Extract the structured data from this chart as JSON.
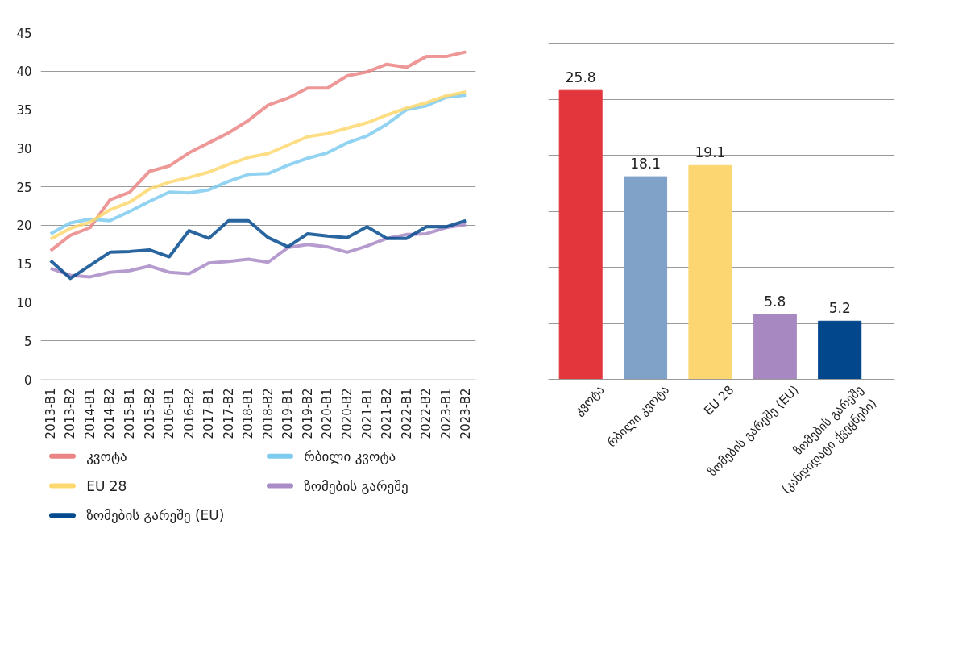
{
  "chart_data": [
    {
      "type": "line",
      "categories": [
        "2013-B1",
        "2013-B2",
        "2014-B1",
        "2014-B2",
        "2015-B1",
        "2015-B2",
        "2016-B1",
        "2016-B2",
        "2017-B1",
        "2017-B2",
        "2018-B1",
        "2018-B2",
        "2019-B1",
        "2019-B2",
        "2020-B1",
        "2020-B2",
        "2021-B1",
        "2021-B2",
        "2022-B1",
        "2022-B2",
        "2023-B1",
        "2023-B2"
      ],
      "ylim": [
        0,
        45
      ],
      "yticks": [
        0,
        5,
        10,
        15,
        20,
        25,
        30,
        35,
        40,
        45
      ],
      "grid": "y",
      "legend": "bottom",
      "line_style": "solid",
      "marker": "none",
      "series": [
        {
          "name": "კვოტა",
          "color": "#eb8585",
          "values": [
            16.7,
            18.7,
            19.7,
            23.3,
            24.3,
            27.0,
            27.7,
            29.4,
            30.7,
            32.0,
            33.6,
            35.6,
            36.5,
            37.8,
            37.8,
            39.4,
            39.9,
            40.9,
            40.5,
            41.9,
            41.9,
            42.5
          ]
        },
        {
          "name": "რბილი კვოტა",
          "color": "#7ecbee",
          "values": [
            18.9,
            20.3,
            20.8,
            20.6,
            21.8,
            23.1,
            24.3,
            24.2,
            24.6,
            25.7,
            26.6,
            26.7,
            27.8,
            28.7,
            29.4,
            30.7,
            31.6,
            33.1,
            35.0,
            35.5,
            36.6,
            36.9
          ]
        },
        {
          "name": "EU 28",
          "color": "#fdd86e",
          "values": [
            18.2,
            19.6,
            20.4,
            22.0,
            23.0,
            24.7,
            25.6,
            26.2,
            26.9,
            27.9,
            28.8,
            29.3,
            30.4,
            31.5,
            31.9,
            32.6,
            33.3,
            34.3,
            35.2,
            35.9,
            36.8,
            37.3
          ]
        },
        {
          "name": "ზომების გარეშე",
          "color": "#a98bc5",
          "values": [
            14.4,
            13.5,
            13.3,
            13.9,
            14.1,
            14.7,
            13.9,
            13.7,
            15.1,
            15.3,
            15.6,
            15.2,
            17.1,
            17.5,
            17.2,
            16.5,
            17.3,
            18.3,
            18.8,
            18.9,
            19.7,
            20.1
          ]
        },
        {
          "name": "ზომების გარეშე (EU)",
          "color": "#034a8e",
          "values": [
            15.4,
            13.1,
            14.8,
            16.5,
            16.6,
            16.8,
            15.9,
            19.3,
            18.3,
            20.6,
            20.6,
            18.4,
            17.2,
            18.9,
            18.6,
            18.4,
            19.8,
            18.3,
            18.3,
            19.8,
            19.8,
            20.6
          ]
        }
      ]
    },
    {
      "type": "bar",
      "categories": [
        "კვოტა",
        "რბილი კვოტა",
        "EU 28",
        "ზომების გარეშე (EU)",
        "ზომების გარეშე\n(კანდიდატი ქვეყნები)"
      ],
      "values": [
        25.8,
        18.1,
        19.1,
        5.8,
        5.2
      ],
      "colors": [
        "#e2363c",
        "#80a2c8",
        "#fbd671",
        "#a788c0",
        "#02468c"
      ],
      "data_labels": true,
      "grid": "y",
      "tick_labels": "x"
    }
  ]
}
